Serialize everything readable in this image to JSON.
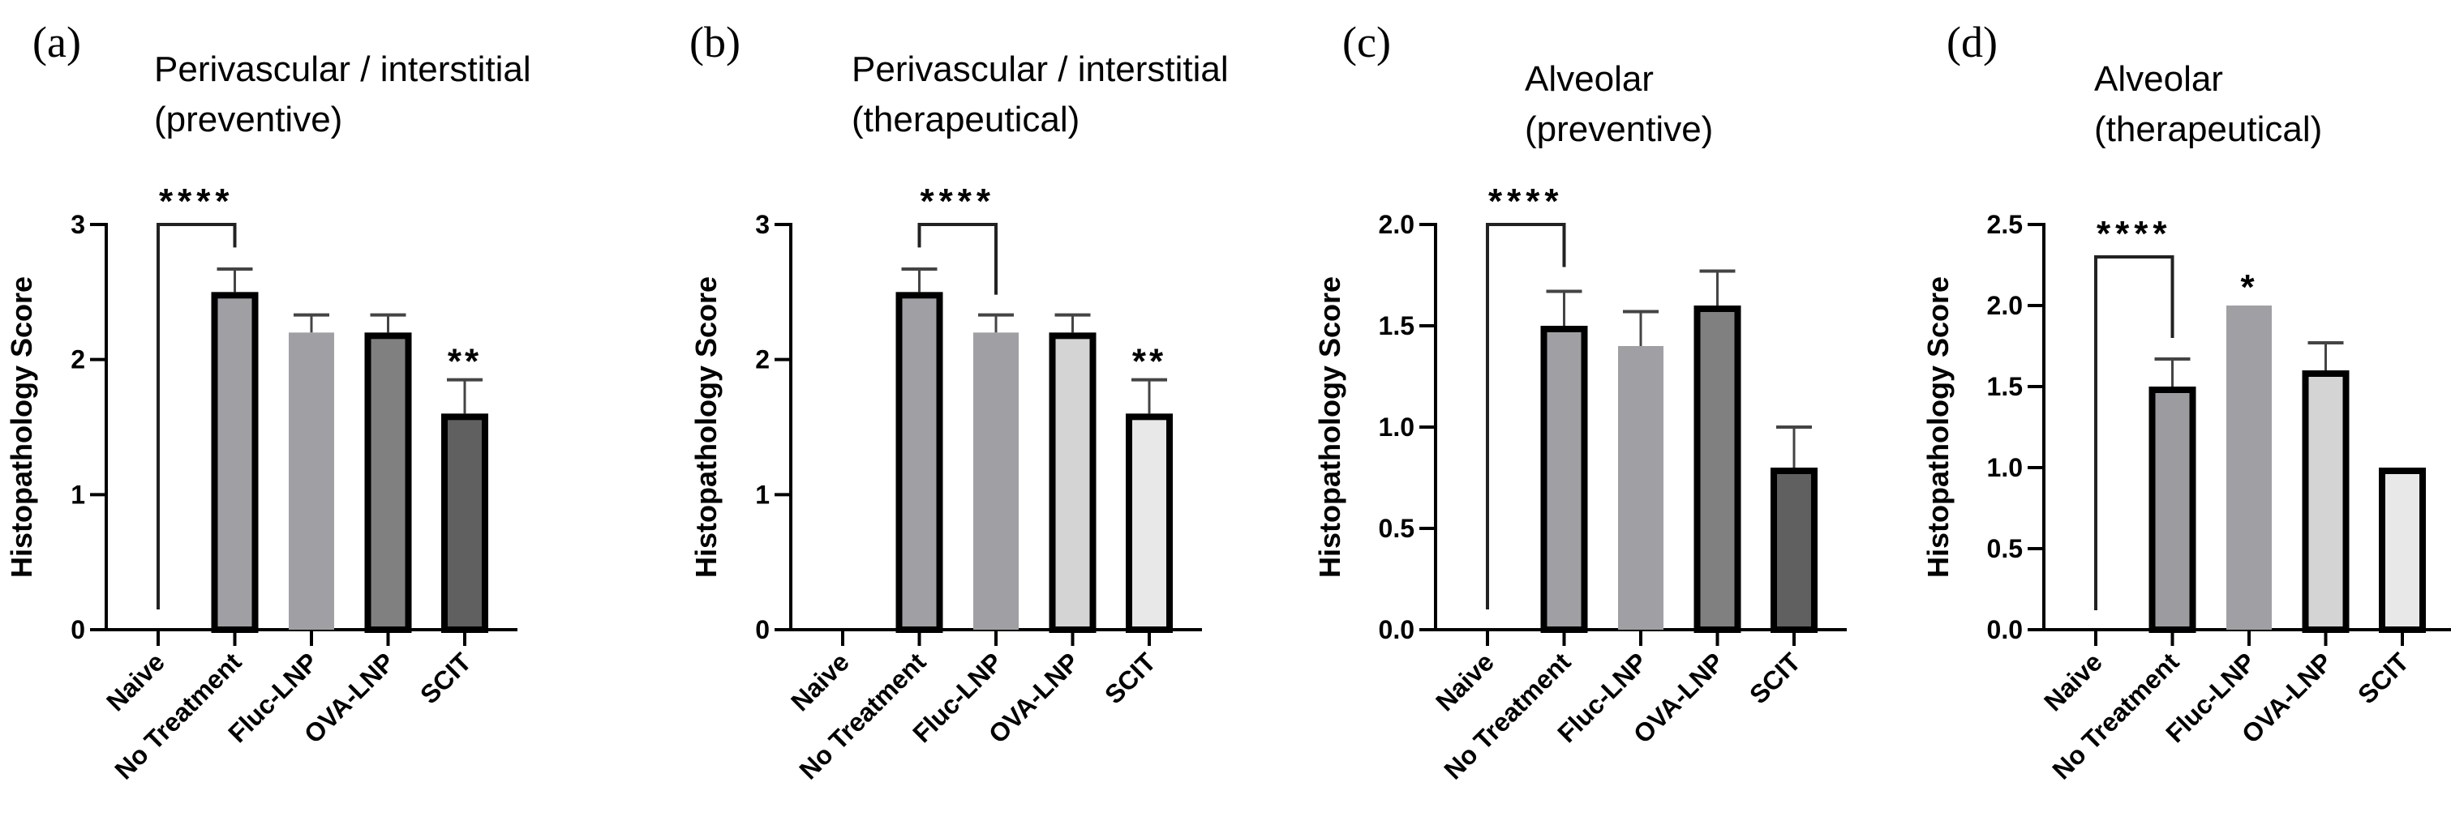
{
  "chart_data": [
    {
      "type": "bar",
      "panel_label": "(a)",
      "title": [
        "Perivascular / interstitial",
        "(preventive)"
      ],
      "ylabel": "Histopathology Score",
      "xlabel": "",
      "ylim": [
        0,
        3
      ],
      "yticks": [
        0,
        1,
        2,
        3
      ],
      "ytick_labels": [
        "0",
        "1",
        "2",
        "3"
      ],
      "categories": [
        "Naive",
        "No Treatment",
        "Fluc-LNP",
        "OVA-LNP",
        "SCIT"
      ],
      "values": [
        0,
        2.5,
        2.2,
        2.2,
        1.6
      ],
      "errors": [
        0,
        0.17,
        0.13,
        0.13,
        0.25
      ],
      "fills": [
        "#ffffff",
        "#a0a0a4",
        "#a0a0a4",
        "#808080",
        "#606060"
      ],
      "outlined": [
        false,
        true,
        false,
        true,
        true
      ],
      "brackets": [
        {
          "from": 0,
          "to": 1,
          "top": 3.0,
          "left_end": 0.15,
          "right_end": 2.83,
          "label": "****"
        }
      ],
      "marks": [
        {
          "index": 4,
          "label": "**"
        }
      ]
    },
    {
      "type": "bar",
      "panel_label": "(b)",
      "title": [
        "Perivascular / interstitial",
        "(therapeutical)"
      ],
      "ylabel": "Histopathology Score",
      "xlabel": "",
      "ylim": [
        0,
        3
      ],
      "yticks": [
        0,
        1,
        2,
        3
      ],
      "ytick_labels": [
        "0",
        "1",
        "2",
        "3"
      ],
      "categories": [
        "Naive",
        "No Treatment",
        "Fluc-LNP",
        "OVA-LNP",
        "SCIT"
      ],
      "values": [
        0,
        2.5,
        2.2,
        2.2,
        1.6
      ],
      "errors": [
        0,
        0.17,
        0.13,
        0.13,
        0.25
      ],
      "fills": [
        "#ffffff",
        "#a0a0a4",
        "#a0a0a4",
        "#d4d4d4",
        "#e8e8e8"
      ],
      "outlined": [
        false,
        true,
        false,
        true,
        true
      ],
      "brackets": [
        {
          "from": 1,
          "to": 2,
          "top": 3.0,
          "left_end": 2.83,
          "right_end": 2.48,
          "label": "****"
        }
      ],
      "marks": [
        {
          "index": 4,
          "label": "**"
        }
      ]
    },
    {
      "type": "bar",
      "panel_label": "(c)",
      "title": [
        "Alveolar",
        "(preventive)"
      ],
      "ylabel": "Histopathology Score",
      "xlabel": "",
      "ylim": [
        0,
        2
      ],
      "yticks": [
        0,
        0.5,
        1,
        1.5,
        2
      ],
      "ytick_labels": [
        "0.0",
        "0.5",
        "1.0",
        "1.5",
        "2.0"
      ],
      "categories": [
        "Naive",
        "No Treatment",
        "Fluc-LNP",
        "OVA-LNP",
        "SCIT"
      ],
      "values": [
        0,
        1.5,
        1.4,
        1.6,
        0.8
      ],
      "errors": [
        0,
        0.17,
        0.17,
        0.17,
        0.2
      ],
      "fills": [
        "#ffffff",
        "#a0a0a4",
        "#a0a0a4",
        "#808080",
        "#606060"
      ],
      "outlined": [
        false,
        true,
        false,
        true,
        true
      ],
      "brackets": [
        {
          "from": 0,
          "to": 1,
          "top": 2.0,
          "left_end": 0.1,
          "right_end": 1.79,
          "label": "****"
        }
      ],
      "marks": []
    },
    {
      "type": "bar",
      "panel_label": "(d)",
      "title": [
        "Alveolar",
        "(therapeutical)"
      ],
      "ylabel": "Histopathology Score",
      "xlabel": "",
      "ylim": [
        0,
        2.5
      ],
      "yticks": [
        0,
        0.5,
        1,
        1.5,
        2,
        2.5
      ],
      "ytick_labels": [
        "0.0",
        "0.5",
        "1.0",
        "1.5",
        "2.0",
        "2.5"
      ],
      "categories": [
        "Naive",
        "No Treatment",
        "Fluc-LNP",
        "OVA-LNP",
        "SCIT"
      ],
      "values": [
        0,
        1.5,
        2.0,
        1.6,
        1.0
      ],
      "errors": [
        0,
        0.17,
        0,
        0.17,
        0
      ],
      "fills": [
        "#ffffff",
        "#9c9ca0",
        "#a0a0a4",
        "#d4d4d4",
        "#e8e8e8"
      ],
      "outlined": [
        false,
        true,
        false,
        true,
        true
      ],
      "brackets": [
        {
          "from": 0,
          "to": 1,
          "top": 2.3,
          "left_end": 0.12,
          "right_end": 1.8,
          "label": "****"
        }
      ],
      "marks": [
        {
          "index": 2,
          "label": "*"
        }
      ]
    }
  ]
}
